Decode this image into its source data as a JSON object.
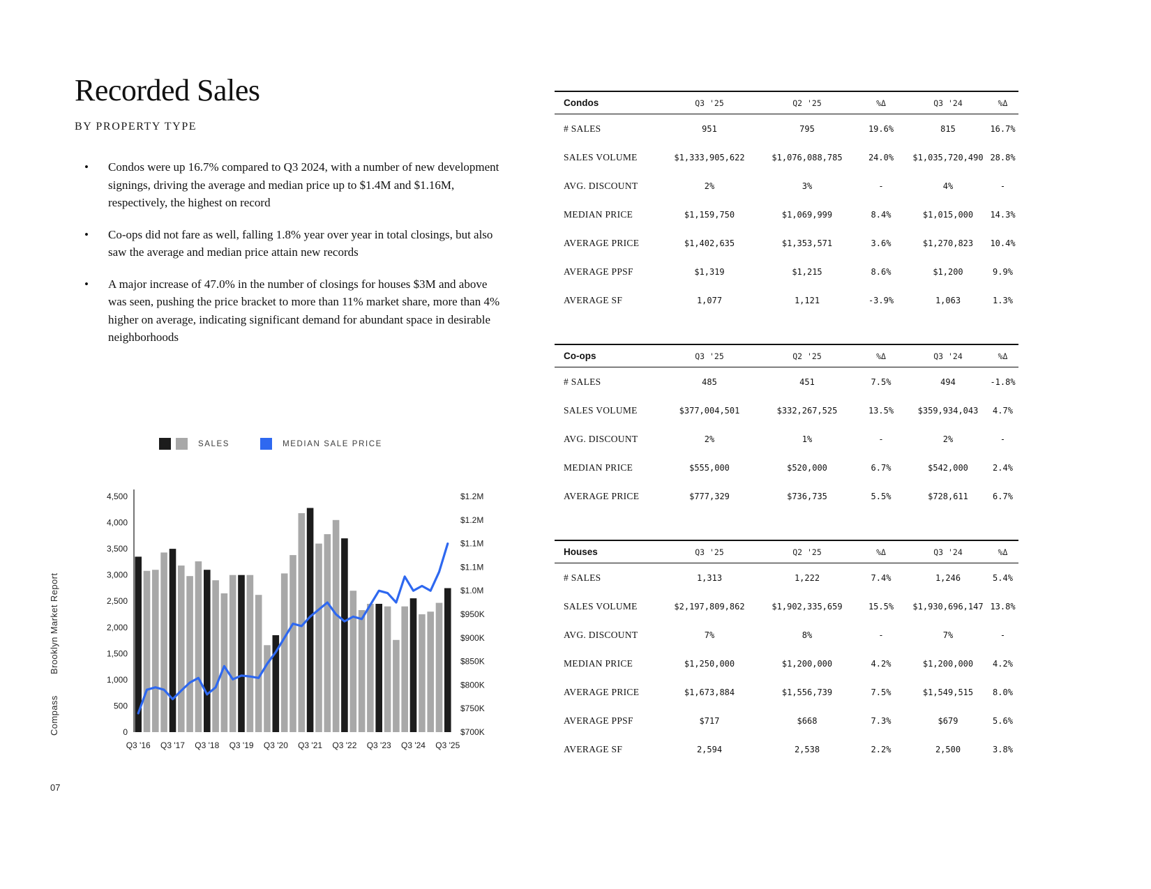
{
  "page": {
    "title": "Recorded Sales",
    "subtitle": "BY PROPERTY TYPE",
    "number": "07",
    "side_brand": "Compass",
    "side_report": "Brooklyn Market Report",
    "bullets": [
      "Condos were up 16.7% compared to Q3 2024, with a number of new development signings, driving the average and median price up to $1.4M and $1.16M, respectively, the highest on record",
      "Co-ops did not fare as well, falling 1.8% year over year in total closings, but also saw the average and median price attain new records",
      "A major increase of 47.0% in the number of closings for houses $3M and above was seen, pushing the price bracket to more than 11% market share, more than 4% higher on average, indicating significant demand for abundant space in desirable neighborhoods"
    ]
  },
  "legend": {
    "sales_label": "SALES",
    "median_label": "MEDIAN SALE PRICE"
  },
  "chart_data": {
    "type": "bar+line",
    "title": "Recorded Sales by quarter with median sale price",
    "x": [
      "Q3 '16",
      "Q4 '16",
      "Q1 '17",
      "Q2 '17",
      "Q3 '17",
      "Q4 '17",
      "Q1 '18",
      "Q2 '18",
      "Q3 '18",
      "Q4 '18",
      "Q1 '19",
      "Q2 '19",
      "Q3 '19",
      "Q4 '19",
      "Q1 '20",
      "Q2 '20",
      "Q3 '20",
      "Q4 '20",
      "Q1 '21",
      "Q2 '21",
      "Q3 '21",
      "Q4 '21",
      "Q1 '22",
      "Q2 '22",
      "Q3 '22",
      "Q4 '22",
      "Q1 '23",
      "Q2 '23",
      "Q3 '23",
      "Q4 '23",
      "Q1 '24",
      "Q2 '24",
      "Q3 '24",
      "Q4 '24",
      "Q1 '25",
      "Q2 '25",
      "Q3 '25"
    ],
    "series": [
      {
        "name": "Sales",
        "type": "bar",
        "values": [
          3350,
          3080,
          3100,
          3430,
          3500,
          3180,
          2980,
          3260,
          3100,
          2900,
          2650,
          3000,
          3000,
          3000,
          2620,
          1660,
          1850,
          3030,
          3380,
          4180,
          4280,
          3600,
          3780,
          4050,
          3700,
          2700,
          2330,
          2450,
          2450,
          2400,
          1760,
          2400,
          2555,
          2250,
          2300,
          2468,
          2749
        ]
      },
      {
        "name": "Median Sale Price ($K)",
        "type": "line",
        "values": [
          740,
          790,
          795,
          790,
          770,
          788,
          805,
          815,
          780,
          795,
          840,
          812,
          820,
          818,
          815,
          845,
          870,
          900,
          930,
          925,
          945,
          960,
          975,
          950,
          935,
          945,
          940,
          970,
          1000,
          995,
          975,
          1030,
          1000,
          1010,
          1000,
          1040,
          1100
        ]
      }
    ],
    "x_ticks": [
      "Q3 '16",
      "Q3 '17",
      "Q3 '18",
      "Q3 '19",
      "Q3 '20",
      "Q3 '21",
      "Q3 '22",
      "Q3 '23",
      "Q3 '24",
      "Q3 '25"
    ],
    "left_axis": {
      "min": 0,
      "max": 4500,
      "tick_labels": [
        "0",
        "500",
        "1,000",
        "1,500",
        "2,000",
        "2,500",
        "3,000",
        "3,500",
        "4,000",
        "4,500"
      ]
    },
    "right_axis": {
      "min": 700,
      "max": 1200,
      "tick_labels": [
        "$700K",
        "$750K",
        "$800K",
        "$850K",
        "$900K",
        "$950K",
        "$1.0M",
        "$1.1M",
        "$1.1M",
        "$1.2M",
        "$1.2M"
      ]
    },
    "colors": {
      "bar_q3": "#1c1c1c",
      "bar_other": "#a8a8a8",
      "line": "#2e68f0"
    },
    "legend_position": "top",
    "grid": false
  },
  "tables": [
    {
      "id": "condos",
      "name": "Condos",
      "columns": [
        "Q3 '25",
        "Q2 '25",
        "%Δ",
        "Q3 '24",
        "%Δ"
      ],
      "rows": [
        {
          "label": "# SALES",
          "values": [
            "951",
            "795",
            "19.6%",
            "815",
            "16.7%"
          ]
        },
        {
          "label": "SALES VOLUME",
          "values": [
            "$1,333,905,622",
            "$1,076,088,785",
            "24.0%",
            "$1,035,720,490",
            "28.8%"
          ]
        },
        {
          "label": "AVG. DISCOUNT",
          "values": [
            "2%",
            "3%",
            "-",
            "4%",
            "-"
          ]
        },
        {
          "label": "MEDIAN PRICE",
          "values": [
            "$1,159,750",
            "$1,069,999",
            "8.4%",
            "$1,015,000",
            "14.3%"
          ]
        },
        {
          "label": "AVERAGE PRICE",
          "values": [
            "$1,402,635",
            "$1,353,571",
            "3.6%",
            "$1,270,823",
            "10.4%"
          ]
        },
        {
          "label": "AVERAGE PPSF",
          "values": [
            "$1,319",
            "$1,215",
            "8.6%",
            "$1,200",
            "9.9%"
          ]
        },
        {
          "label": "AVERAGE SF",
          "values": [
            "1,077",
            "1,121",
            "-3.9%",
            "1,063",
            "1.3%"
          ]
        }
      ]
    },
    {
      "id": "coops",
      "name": "Co-ops",
      "columns": [
        "Q3 '25",
        "Q2 '25",
        "%Δ",
        "Q3 '24",
        "%Δ"
      ],
      "rows": [
        {
          "label": "# SALES",
          "values": [
            "485",
            "451",
            "7.5%",
            "494",
            "-1.8%"
          ]
        },
        {
          "label": "SALES VOLUME",
          "values": [
            "$377,004,501",
            "$332,267,525",
            "13.5%",
            "$359,934,043",
            "4.7%"
          ]
        },
        {
          "label": "AVG. DISCOUNT",
          "values": [
            "2%",
            "1%",
            "-",
            "2%",
            "-"
          ]
        },
        {
          "label": "MEDIAN PRICE",
          "values": [
            "$555,000",
            "$520,000",
            "6.7%",
            "$542,000",
            "2.4%"
          ]
        },
        {
          "label": "AVERAGE PRICE",
          "values": [
            "$777,329",
            "$736,735",
            "5.5%",
            "$728,611",
            "6.7%"
          ]
        }
      ]
    },
    {
      "id": "houses",
      "name": "Houses",
      "columns": [
        "Q3 '25",
        "Q2 '25",
        "%Δ",
        "Q3 '24",
        "%Δ"
      ],
      "rows": [
        {
          "label": "# SALES",
          "values": [
            "1,313",
            "1,222",
            "7.4%",
            "1,246",
            "5.4%"
          ]
        },
        {
          "label": "SALES VOLUME",
          "values": [
            "$2,197,809,862",
            "$1,902,335,659",
            "15.5%",
            "$1,930,696,147",
            "13.8%"
          ]
        },
        {
          "label": "AVG. DISCOUNT",
          "values": [
            "7%",
            "8%",
            "-",
            "7%",
            "-"
          ]
        },
        {
          "label": "MEDIAN PRICE",
          "values": [
            "$1,250,000",
            "$1,200,000",
            "4.2%",
            "$1,200,000",
            "4.2%"
          ]
        },
        {
          "label": "AVERAGE PRICE",
          "values": [
            "$1,673,884",
            "$1,556,739",
            "7.5%",
            "$1,549,515",
            "8.0%"
          ]
        },
        {
          "label": "AVERAGE PPSF",
          "values": [
            "$717",
            "$668",
            "7.3%",
            "$679",
            "5.6%"
          ]
        },
        {
          "label": "AVERAGE SF",
          "values": [
            "2,594",
            "2,538",
            "2.2%",
            "2,500",
            "3.8%"
          ]
        }
      ]
    }
  ]
}
